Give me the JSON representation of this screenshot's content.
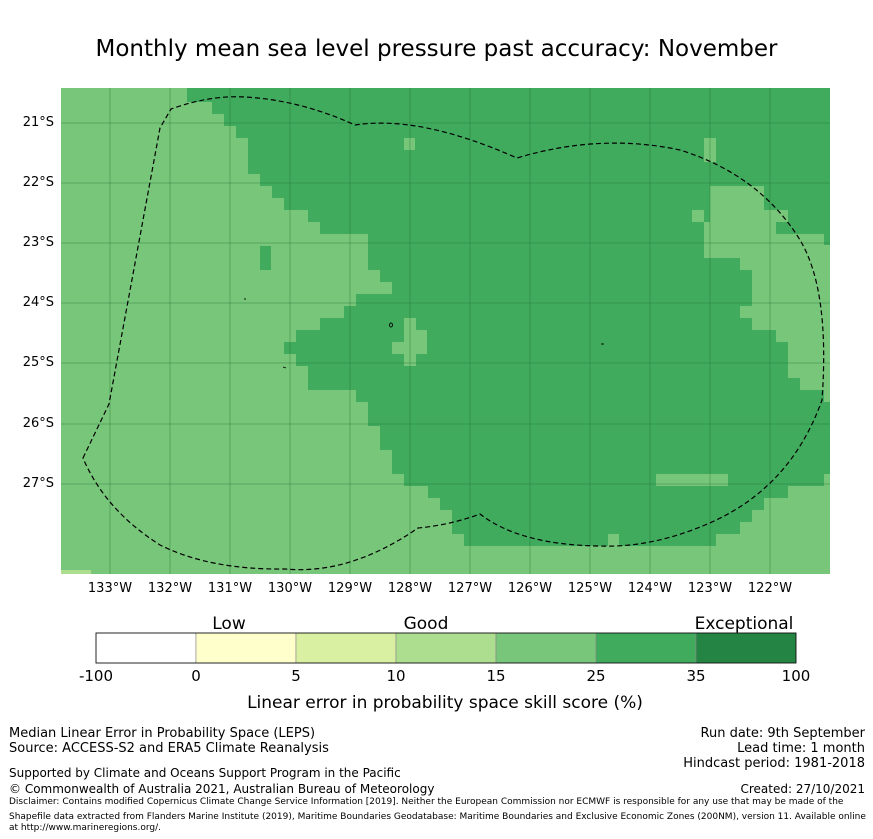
{
  "title": "Monthly mean sea level pressure past accuracy: November",
  "map": {
    "lon_labels": [
      "133°W",
      "132°W",
      "131°W",
      "130°W",
      "129°W",
      "128°W",
      "127°W",
      "126°W",
      "125°W",
      "124°W",
      "123°W",
      "122°W"
    ],
    "lat_labels": [
      "21°S",
      "22°S",
      "23°S",
      "24°S",
      "25°S",
      "26°S",
      "27°S"
    ],
    "colors": {
      "c15": "#78c679",
      "c25": "#41ab5d",
      "c35": "#238443"
    }
  },
  "colorbar": {
    "category_labels": [
      "Low",
      "Good",
      "Exceptional"
    ],
    "tick_labels": [
      "-100",
      "0",
      "5",
      "10",
      "15",
      "25",
      "35",
      "100"
    ],
    "colors": [
      "#ffffff",
      "#ffffcc",
      "#d9f0a3",
      "#addd8e",
      "#78c679",
      "#41ab5d",
      "#238443"
    ],
    "axis_label": "Linear error in probability space skill score (%)"
  },
  "footer": {
    "left_line1": "Median Linear Error in Probability Space (LEPS)",
    "left_line2": "Source: ACCESS-S2 and ERA5 Climate Reanalysis",
    "supported": "Supported by Climate and Oceans Support Program in the Pacific",
    "copyright": "© Commonwealth of Australia 2021, Australian Bureau of Meteorology",
    "disclaimer": "Disclaimer: Contains modified Copernicus Climate Change Service Information [2019]. Neither the European Commission nor ECMWF is responsible for any use that may be made of the Copernicus Information or Data it contains.",
    "shapefile": "Shapefile data extracted from Flanders Marine Institute (2019), Maritime Boundaries Geodatabase: Maritime Boundaries and Exclusive Economic Zones (200NM), version 11. Available online at http://www.marineregions.org/.",
    "run_date": "Run date: 9th September",
    "lead_time": "Lead time: 1 month",
    "hindcast": "Hindcast period: 1981-2018",
    "created": "Created: 27/10/2021"
  }
}
